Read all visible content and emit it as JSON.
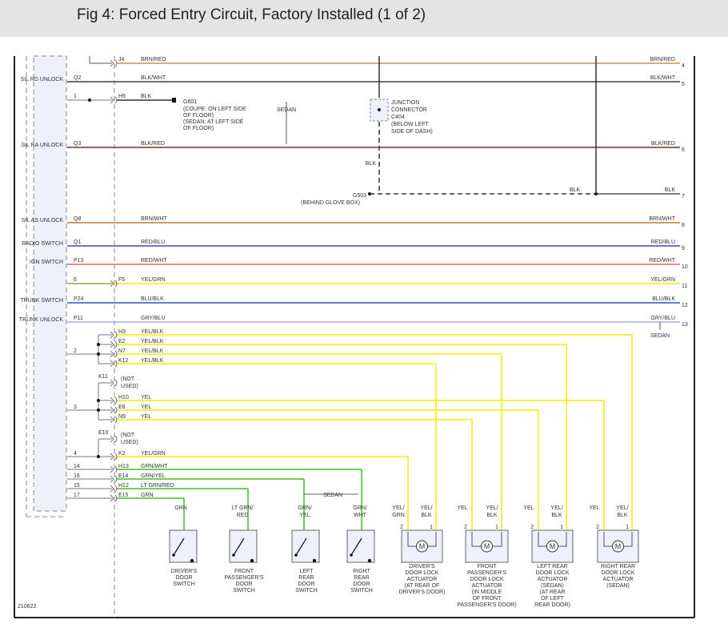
{
  "title": "Fig 4: Forced Entry Circuit, Factory Installed (1 of 2)",
  "figure_id": "210622",
  "module_labels": [
    "SIL RD UNLOCK",
    "SIL RA UNLOCK",
    "SIL AS UNLOCK",
    "RADIO SWITCH",
    "IGN SWITCH",
    "TRUNK SWITCH",
    "TRUNK UNLOCK"
  ],
  "wires": [
    {
      "module_pin": "",
      "pin": "J4",
      "label": "BRN/RED",
      "right_label": "BRN/RED",
      "num": "4",
      "color": "#c8925a"
    },
    {
      "module_pin": "Q2",
      "pin": "",
      "label": "BLK/WHT",
      "right_label": "BLK/WHT",
      "num": "5",
      "color": "#404040"
    },
    {
      "module_pin": "1",
      "pin": "H9",
      "label": "BLK",
      "right_label": "",
      "num": "",
      "color": "#404040"
    },
    {
      "module_pin": "Q3",
      "pin": "",
      "label": "BLK/RED",
      "right_label": "BLK/RED",
      "num": "6",
      "color": "#6a3a34"
    },
    {
      "module_pin": "",
      "pin": "",
      "label": "",
      "right_label": "BLK",
      "num": "7",
      "color": "#404040"
    },
    {
      "module_pin": "Q8",
      "pin": "",
      "label": "BRN/WHT",
      "right_label": "BRN/WHT",
      "num": "8",
      "color": "#b08040"
    },
    {
      "module_pin": "Q1",
      "pin": "",
      "label": "RED/BLU",
      "right_label": "RED/BLU",
      "num": "9",
      "color": "#4a3ec8"
    },
    {
      "module_pin": "P13",
      "pin": "",
      "label": "RED/WHT",
      "right_label": "RED/WHT",
      "num": "10",
      "color": "#f06060"
    },
    {
      "module_pin": "6",
      "pin": "F5",
      "label": "YEL/GRN",
      "right_label": "YEL/GRN",
      "num": "11",
      "color": "#f0f000"
    },
    {
      "module_pin": "P24",
      "pin": "",
      "label": "BLU/BLK",
      "right_label": "BLU/BLK",
      "num": "12",
      "color": "#3050d8"
    },
    {
      "module_pin": "P11",
      "pin": "",
      "label": "GRY/BLU",
      "right_label": "GRY/BLU",
      "num": "13",
      "color": "#a8a8e8"
    }
  ],
  "ground_g601": {
    "id": "G601",
    "notes": [
      "(COUPE: ON LEFT SIDE",
      "OF FLOOR)",
      "(SEDAN: AT LEFT SIDE",
      "OF FLOOR)"
    ]
  },
  "ground_g503": {
    "id": "G503",
    "note": "(BEHIND GLOVE BOX)",
    "wire": "BLK"
  },
  "junction": {
    "lines": [
      "JUNCTION",
      "CONNECTOR",
      "C404",
      "(BELOW LEFT",
      "SIDE OF DASH)"
    ]
  },
  "sedan_label": "SEDAN",
  "branch_wires": [
    {
      "module_pin": "",
      "pin": "H3",
      "label": "YEL/BLK",
      "color": "#f0f000"
    },
    {
      "module_pin": "",
      "pin": "E2",
      "label": "YEL/BLK",
      "color": "#f0f000"
    },
    {
      "module_pin": "2",
      "pin": "N7",
      "label": "YEL/BLK",
      "color": "#f0f000"
    },
    {
      "module_pin": "",
      "pin": "K12",
      "label": "YEL/BLK",
      "color": "#f0f000"
    },
    {
      "module_pin": "",
      "pin": "H10",
      "label": "YEL",
      "color": "#f0f000"
    },
    {
      "module_pin": "3",
      "pin": "E8",
      "label": "YEL",
      "color": "#f0f000"
    },
    {
      "module_pin": "",
      "pin": "N9",
      "label": "YEL",
      "color": "#f0f000"
    },
    {
      "module_pin": "4",
      "pin": "K2",
      "label": "YEL/GRN",
      "color": "#f0f000"
    },
    {
      "module_pin": "14",
      "pin": "H13",
      "label": "GRN/WHT",
      "color": "#40c020"
    },
    {
      "module_pin": "16",
      "pin": "E14",
      "label": "GRN/YEL",
      "color": "#40c020"
    },
    {
      "module_pin": "15",
      "pin": "H12",
      "label": "LT GRN/RED",
      "color": "#40c020"
    },
    {
      "module_pin": "17",
      "pin": "E15",
      "label": "GRN",
      "color": "#40c020"
    }
  ],
  "not_used": [
    {
      "pin": "K11",
      "text": [
        "(NOT",
        "USED)"
      ]
    },
    {
      "pin": "E10",
      "text": [
        "(NOT",
        "USED)"
      ]
    }
  ],
  "switches": [
    {
      "wire": [
        "GRN"
      ],
      "name": [
        "DRIVER'S",
        "DOOR",
        "SWITCH"
      ]
    },
    {
      "wire": [
        "LT GRN/",
        "RED"
      ],
      "name": [
        "FRONT",
        "PASSENGER'S",
        "DOOR",
        "SWITCH"
      ]
    },
    {
      "wire": [
        "GRN/",
        "YEL"
      ],
      "name": [
        "LEFT",
        "REAR",
        "DOOR",
        "SWITCH"
      ]
    },
    {
      "wire": [
        "GRN/",
        "WHT"
      ],
      "name": [
        "RIGHT",
        "REAR",
        "DOOR",
        "SWITCH"
      ]
    }
  ],
  "actuators": [
    {
      "wire2": [
        "YEL/",
        "GRN"
      ],
      "wire1": [
        "YEL/",
        "BLK"
      ],
      "name": [
        "DRIVER'S",
        "DOOR LOCK",
        "ACTUATOR",
        "(AT REAR OF",
        "DRIVER'S DOOR)"
      ]
    },
    {
      "wire2": [
        "YEL"
      ],
      "wire1": [
        "YEL/",
        "BLK"
      ],
      "name": [
        "FRONT",
        "PASSENGER'S",
        "DOOR LOCK",
        "ACTUATOR",
        "(IN MIDDLE",
        "OF FRONT",
        "PASSENGER'S DOOR)"
      ]
    },
    {
      "wire2": [
        "YEL"
      ],
      "wire1": [
        "YEL/",
        "BLK"
      ],
      "name": [
        "LEFT REAR",
        "DOOR LOCK",
        "ACTUATOR",
        "(SEDAN)",
        "(AT REAR",
        "OF LEFT",
        "REAR DOOR)"
      ]
    },
    {
      "wire2": [
        "YEL"
      ],
      "wire1": [
        "YEL/",
        "BLK"
      ],
      "name": [
        "RIGHT REAR",
        "DOOR LOCK",
        "ACTUATOR",
        "(SEDAN)"
      ]
    }
  ],
  "pin_numbers": [
    "2",
    "1"
  ],
  "motor_symbol": "M"
}
